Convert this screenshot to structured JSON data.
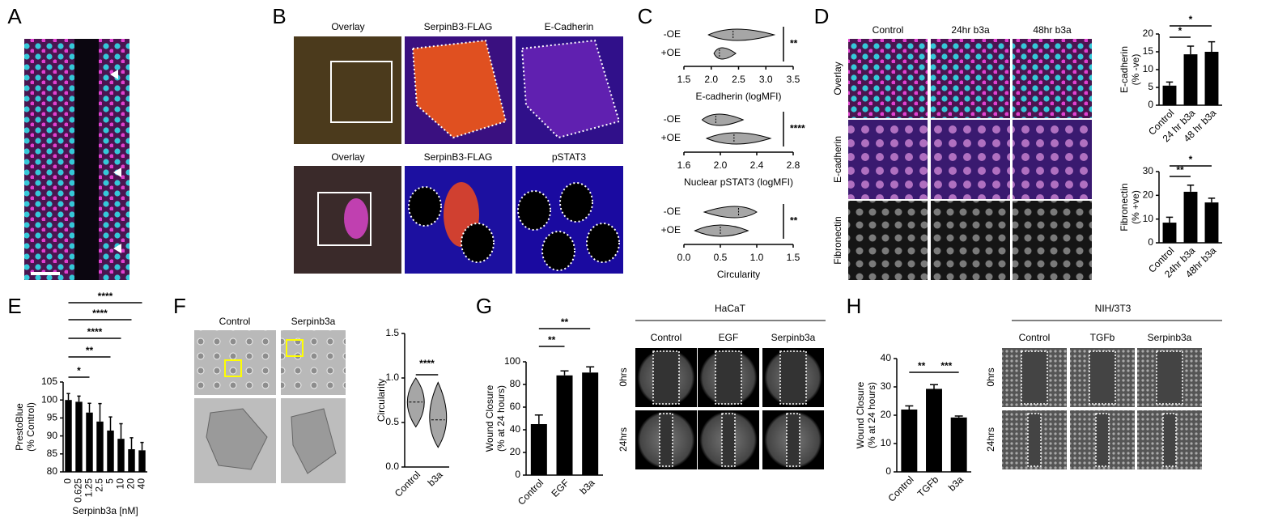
{
  "panel_labels": [
    "A",
    "B",
    "C",
    "D",
    "E",
    "F",
    "G",
    "H"
  ],
  "B": {
    "row1": [
      "Overlay",
      "SerpinB3-FLAG",
      "E-Cadherin"
    ],
    "row2": [
      "Overlay",
      "SerpinB3-FLAG",
      "pSTAT3"
    ]
  },
  "D": {
    "columns": [
      "Control",
      "24hr b3a",
      "48hr b3a"
    ],
    "rows": [
      "Overlay",
      "E-cadherin",
      "Fibronectin"
    ]
  },
  "F": {
    "columns": [
      "Control",
      "Serpinb3a"
    ]
  },
  "G": {
    "title": "HaCaT",
    "columns": [
      "Control",
      "EGF",
      "Serpinb3a"
    ],
    "rows": [
      "0hrs",
      "24hrs"
    ]
  },
  "H": {
    "title": "NIH/3T3",
    "columns": [
      "Control",
      "TGFb",
      "Serpinb3a"
    ],
    "rows": [
      "0hrs",
      "24hrs"
    ]
  },
  "chart_data": [
    {
      "type": "violin",
      "orientation": "horizontal",
      "xlabel": "E-cadherin (logMFI)",
      "categories": [
        "-OE",
        "+OE"
      ],
      "values": [
        2.4,
        2.15
      ],
      "ranges": [
        [
          1.95,
          3.15
        ],
        [
          2.05,
          2.45
        ]
      ],
      "color": "#a6a6a6",
      "xlim": [
        1.5,
        3.5
      ],
      "xticks": [
        1.5,
        {
          "value": 2,
          "label": "2.0"
        },
        2.5,
        {
          "value": 3,
          "label": "3.0"
        },
        3.5
      ],
      "significance": [
        "**"
      ]
    },
    {
      "type": "violin",
      "orientation": "horizontal",
      "xlabel": "Nuclear pSTAT3 (logMFI)",
      "categories": [
        "-OE",
        "+OE"
      ],
      "values": [
        1.95,
        2.15
      ],
      "ranges": [
        [
          1.8,
          2.25
        ],
        [
          1.85,
          2.55
        ]
      ],
      "color": "#a6a6a6",
      "xlim": [
        1.6,
        2.8
      ],
      "xticks": [
        1.6,
        {
          "value": 2,
          "label": "2.0"
        },
        2.4,
        2.8
      ],
      "significance": [
        "****"
      ]
    },
    {
      "type": "violin",
      "orientation": "horizontal",
      "xlabel": "Circularity",
      "categories": [
        "-OE",
        "+OE"
      ],
      "values": [
        0.75,
        0.5
      ],
      "ranges": [
        [
          0.28,
          1.0
        ],
        [
          0.15,
          0.88
        ]
      ],
      "color": "#a6a6a6",
      "xlim": [
        0,
        1.5
      ],
      "xticks": [
        {
          "value": 0,
          "label": "0.0"
        },
        0.5,
        {
          "value": 1,
          "label": "1.0"
        },
        1.5
      ],
      "significance": [
        "**"
      ]
    },
    {
      "type": "bar",
      "ylabel": [
        "E-cadherin",
        "(% -ve)"
      ],
      "categories": [
        "Control",
        "24 hr b3a",
        "48 hr b3a"
      ],
      "values": [
        5.5,
        14.3,
        15
      ],
      "errors": [
        1,
        2.3,
        2.8
      ],
      "color": "#000000",
      "ylim": [
        0,
        20
      ],
      "yticks": [
        0,
        5,
        10,
        15,
        20
      ],
      "significance": [
        "*",
        "*"
      ]
    },
    {
      "type": "bar",
      "ylabel": [
        "Fibronectin",
        "(% +ve)"
      ],
      "categories": [
        "Control",
        "24hr b3a",
        "48hr b3a"
      ],
      "values": [
        8.5,
        21.5,
        17
      ],
      "errors": [
        2.3,
        2.8,
        1.8
      ],
      "color": "#000000",
      "ylim": [
        0,
        30
      ],
      "yticks": [
        0,
        10,
        20,
        30
      ],
      "significance": [
        "**",
        "*"
      ]
    },
    {
      "type": "bar",
      "ylabel": [
        "PrestoBlue",
        "(% Control)"
      ],
      "xlabel": "Serpinb3a [nM]",
      "categories": [
        "0",
        "0.625",
        "1.25",
        "2.5",
        "5",
        "10",
        "20",
        "40"
      ],
      "values": [
        100,
        99.5,
        96.5,
        94,
        91.5,
        89.2,
        86.3,
        86
      ],
      "errors": [
        1.8,
        1.6,
        2.6,
        5,
        3.8,
        4.2,
        3.2,
        2.2
      ],
      "color": "#000000",
      "ylim": [
        80,
        105
      ],
      "yticks": [
        80,
        85,
        90,
        95,
        100,
        105
      ],
      "significance": [
        "*",
        "**",
        "****",
        "****",
        "****"
      ]
    },
    {
      "type": "violin",
      "orientation": "vertical",
      "ylabel": [
        "Circularity"
      ],
      "categories": [
        "Control",
        "b3a"
      ],
      "values": [
        0.73,
        0.53
      ],
      "ranges": [
        [
          0.45,
          1.0
        ],
        [
          0.22,
          0.95
        ]
      ],
      "color": "#a6a6a6",
      "ylim": [
        0,
        1.5
      ],
      "yticks": [
        {
          "value": 0,
          "label": "0.0"
        },
        0.5,
        {
          "value": 1,
          "label": "1.0"
        },
        1.5
      ],
      "significance": [
        "****"
      ]
    },
    {
      "type": "bar",
      "ylabel": [
        "Wound Closure",
        "(% at 24 hours)"
      ],
      "categories": [
        "Control",
        "EGF",
        "b3a"
      ],
      "values": [
        45,
        88,
        90.5
      ],
      "errors": [
        8,
        4,
        5
      ],
      "color": "#000000",
      "ylim": [
        0,
        100
      ],
      "yticks": [
        0,
        20,
        40,
        60,
        80,
        100
      ],
      "significance": [
        "**",
        "**"
      ]
    },
    {
      "type": "bar",
      "ylabel": [
        "Wound Closure",
        "(% at 24 hours)"
      ],
      "categories": [
        "Control",
        "TGFb",
        "b3a"
      ],
      "values": [
        22,
        29.3,
        19.2
      ],
      "errors": [
        1.3,
        1.5,
        0.5
      ],
      "color": "#000000",
      "ylim": [
        0,
        40
      ],
      "yticks": [
        0,
        10,
        20,
        30,
        40
      ],
      "significance": [
        "**",
        "***"
      ]
    }
  ]
}
